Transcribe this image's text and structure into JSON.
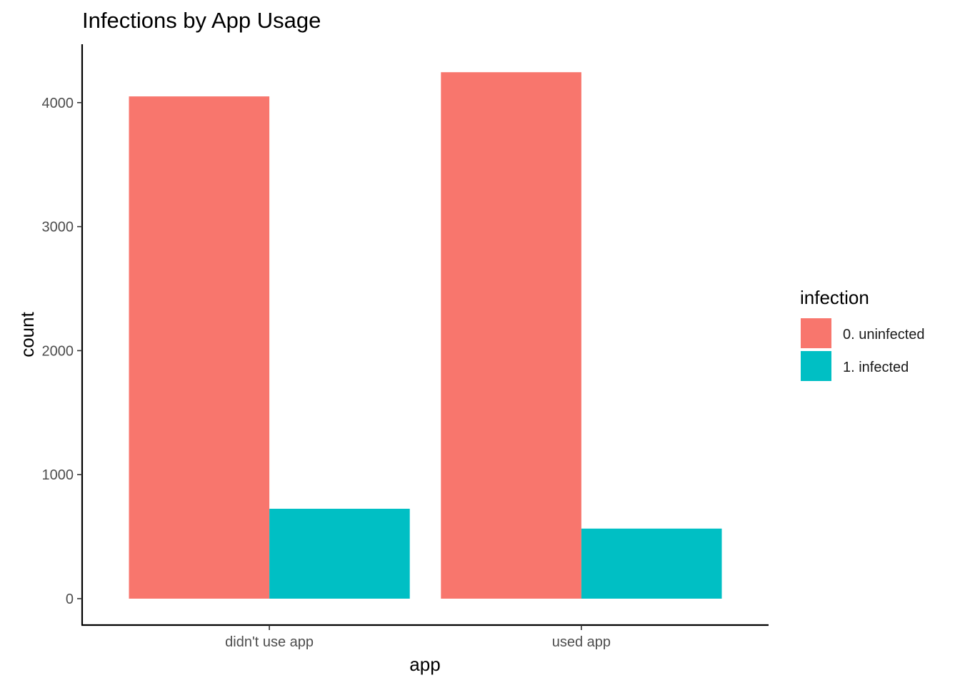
{
  "chart_data": {
    "type": "bar",
    "title": "Infections by App Usage",
    "xlabel": "app",
    "ylabel": "count",
    "categories": [
      "didn't use app",
      "used app"
    ],
    "series": [
      {
        "name": "0. uninfected",
        "values": [
          4050,
          4245
        ],
        "color": "#F8766D"
      },
      {
        "name": "1. infected",
        "values": [
          725,
          565
        ],
        "color": "#00BFC4"
      }
    ],
    "ylim": [
      0,
      4500
    ],
    "yticks": [
      0,
      1000,
      2000,
      3000,
      4000
    ],
    "grid": false,
    "legend": {
      "title": "infection",
      "position": "right"
    }
  }
}
